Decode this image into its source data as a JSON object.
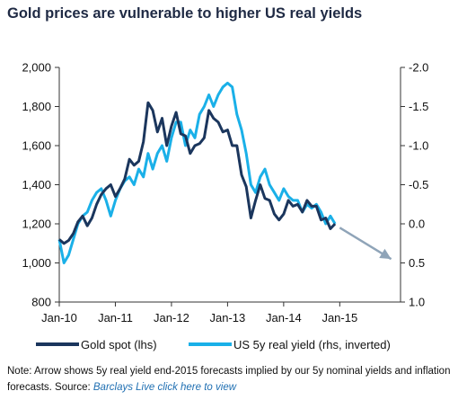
{
  "chart_data": {
    "type": "line",
    "title": "Gold prices are vulnerable to higher US real yields",
    "x_ticks": [
      "Jan-10",
      "Jan-11",
      "Jan-12",
      "Jan-13",
      "Jan-14",
      "Jan-15"
    ],
    "xlim": [
      "2010-01",
      "2016-02"
    ],
    "y_left": {
      "ticks": [
        "800",
        "1,000",
        "1,200",
        "1,400",
        "1,600",
        "1,800",
        "2,000"
      ],
      "ylim": [
        800,
        2000
      ]
    },
    "y_right": {
      "ticks": [
        "-2.0",
        "-1.5",
        "-1.0",
        "-0.5",
        "0.0",
        "0.5",
        "1.0"
      ],
      "ylim": [
        -2.0,
        1.0
      ],
      "inverted": true
    },
    "series": [
      {
        "name": "Gold spot (lhs)",
        "axis": "left",
        "color": "#1b365d",
        "points": [
          [
            "2010-01",
            1120
          ],
          [
            "2010-02",
            1100
          ],
          [
            "2010-03",
            1115
          ],
          [
            "2010-04",
            1150
          ],
          [
            "2010-05",
            1210
          ],
          [
            "2010-06",
            1240
          ],
          [
            "2010-07",
            1190
          ],
          [
            "2010-08",
            1230
          ],
          [
            "2010-09",
            1300
          ],
          [
            "2010-10",
            1350
          ],
          [
            "2010-11",
            1380
          ],
          [
            "2010-12",
            1400
          ],
          [
            "2011-01",
            1340
          ],
          [
            "2011-02",
            1380
          ],
          [
            "2011-03",
            1430
          ],
          [
            "2011-04",
            1530
          ],
          [
            "2011-05",
            1500
          ],
          [
            "2011-06",
            1520
          ],
          [
            "2011-07",
            1620
          ],
          [
            "2011-08",
            1820
          ],
          [
            "2011-09",
            1780
          ],
          [
            "2011-10",
            1670
          ],
          [
            "2011-11",
            1740
          ],
          [
            "2011-12",
            1600
          ],
          [
            "2012-01",
            1700
          ],
          [
            "2012-02",
            1770
          ],
          [
            "2012-03",
            1660
          ],
          [
            "2012-04",
            1650
          ],
          [
            "2012-05",
            1560
          ],
          [
            "2012-06",
            1600
          ],
          [
            "2012-07",
            1610
          ],
          [
            "2012-08",
            1640
          ],
          [
            "2012-09",
            1780
          ],
          [
            "2012-10",
            1740
          ],
          [
            "2012-11",
            1720
          ],
          [
            "2012-12",
            1670
          ],
          [
            "2013-01",
            1680
          ],
          [
            "2013-02",
            1600
          ],
          [
            "2013-03",
            1600
          ],
          [
            "2013-04",
            1450
          ],
          [
            "2013-05",
            1390
          ],
          [
            "2013-06",
            1230
          ],
          [
            "2013-07",
            1320
          ],
          [
            "2013-08",
            1400
          ],
          [
            "2013-09",
            1330
          ],
          [
            "2013-10",
            1320
          ],
          [
            "2013-11",
            1250
          ],
          [
            "2013-12",
            1220
          ],
          [
            "2014-01",
            1250
          ],
          [
            "2014-02",
            1320
          ],
          [
            "2014-03",
            1290
          ],
          [
            "2014-04",
            1300
          ],
          [
            "2014-05",
            1260
          ],
          [
            "2014-06",
            1320
          ],
          [
            "2014-07",
            1290
          ],
          [
            "2014-08",
            1290
          ],
          [
            "2014-09",
            1220
          ],
          [
            "2014-10",
            1230
          ],
          [
            "2014-11",
            1175
          ],
          [
            "2014-12",
            1200
          ]
        ]
      },
      {
        "name": "US 5y real yield (rhs, inverted)",
        "axis": "right",
        "color": "#1ab0e8",
        "points": [
          [
            "2010-01",
            0.2
          ],
          [
            "2010-02",
            0.5
          ],
          [
            "2010-03",
            0.4
          ],
          [
            "2010-04",
            0.2
          ],
          [
            "2010-05",
            0.0
          ],
          [
            "2010-06",
            -0.1
          ],
          [
            "2010-07",
            -0.15
          ],
          [
            "2010-08",
            -0.3
          ],
          [
            "2010-09",
            -0.4
          ],
          [
            "2010-10",
            -0.45
          ],
          [
            "2010-11",
            -0.3
          ],
          [
            "2010-12",
            -0.1
          ],
          [
            "2011-01",
            -0.3
          ],
          [
            "2011-02",
            -0.45
          ],
          [
            "2011-03",
            -0.55
          ],
          [
            "2011-04",
            -0.6
          ],
          [
            "2011-05",
            -0.5
          ],
          [
            "2011-06",
            -0.7
          ],
          [
            "2011-07",
            -0.6
          ],
          [
            "2011-08",
            -0.9
          ],
          [
            "2011-09",
            -0.7
          ],
          [
            "2011-10",
            -0.9
          ],
          [
            "2011-11",
            -1.0
          ],
          [
            "2011-12",
            -0.8
          ],
          [
            "2012-01",
            -1.1
          ],
          [
            "2012-02",
            -1.3
          ],
          [
            "2012-03",
            -1.3
          ],
          [
            "2012-04",
            -1.0
          ],
          [
            "2012-05",
            -1.2
          ],
          [
            "2012-06",
            -1.1
          ],
          [
            "2012-07",
            -1.4
          ],
          [
            "2012-08",
            -1.5
          ],
          [
            "2012-09",
            -1.65
          ],
          [
            "2012-10",
            -1.5
          ],
          [
            "2012-11",
            -1.65
          ],
          [
            "2012-12",
            -1.75
          ],
          [
            "2013-01",
            -1.8
          ],
          [
            "2013-02",
            -1.75
          ],
          [
            "2013-03",
            -1.4
          ],
          [
            "2013-04",
            -1.2
          ],
          [
            "2013-05",
            -0.9
          ],
          [
            "2013-06",
            -0.5
          ],
          [
            "2013-07",
            -0.4
          ],
          [
            "2013-08",
            -0.6
          ],
          [
            "2013-09",
            -0.7
          ],
          [
            "2013-10",
            -0.5
          ],
          [
            "2013-11",
            -0.4
          ],
          [
            "2013-12",
            -0.3
          ],
          [
            "2014-01",
            -0.45
          ],
          [
            "2014-02",
            -0.35
          ],
          [
            "2014-03",
            -0.3
          ],
          [
            "2014-04",
            -0.3
          ],
          [
            "2014-05",
            -0.15
          ],
          [
            "2014-06",
            -0.25
          ],
          [
            "2014-07",
            -0.2
          ],
          [
            "2014-08",
            -0.25
          ],
          [
            "2014-09",
            -0.15
          ],
          [
            "2014-10",
            0.0
          ],
          [
            "2014-11",
            -0.1
          ],
          [
            "2014-12",
            0.0
          ]
        ]
      }
    ],
    "forecast_arrow": {
      "axis": "right",
      "color": "#8fa4b8",
      "from": [
        "2015-01",
        0.05
      ],
      "to": [
        "2015-12",
        0.45
      ]
    },
    "legend": {
      "placement": "bottom"
    },
    "grid": false
  },
  "legend": {
    "gold": "Gold spot (lhs)",
    "yield": "US 5y real yield (rhs, inverted)"
  },
  "note": {
    "text": "Note: Arrow shows 5y real yield end-2015 forecasts implied by our 5y nominal yields and inflation forecasts. Source: ",
    "link": "Barclays Live click here to view"
  }
}
